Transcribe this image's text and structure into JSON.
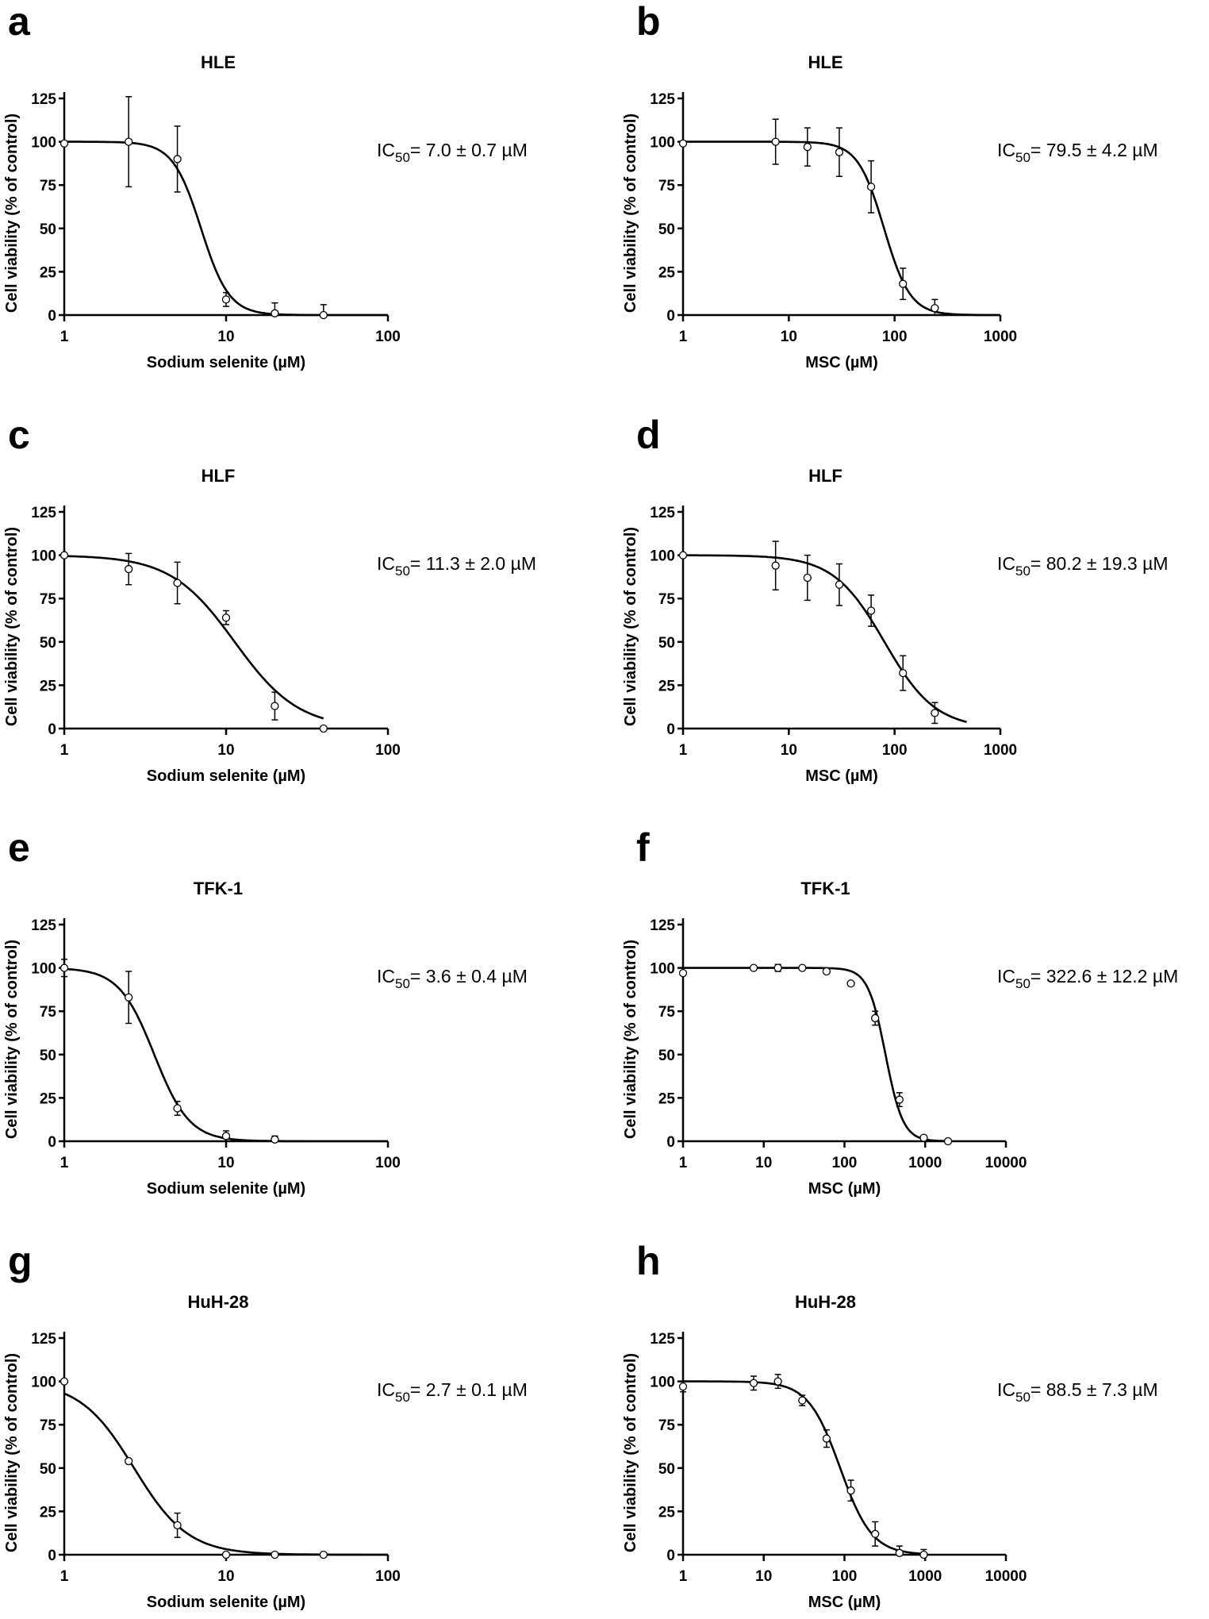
{
  "chart_data": [
    {
      "letter": "a",
      "type": "scatter",
      "title": "HLE",
      "xlabel": "Sodium selenite (µM)",
      "ylabel": "Cell viability (% of control)",
      "xscale": "log",
      "xlim": [
        1,
        100
      ],
      "xticks": [
        "1",
        "10",
        "100"
      ],
      "ylim": [
        0,
        125
      ],
      "yticks": [
        "0",
        "25",
        "50",
        "75",
        "100",
        "125"
      ],
      "ic50": {
        "prefix": "IC",
        "sub": "50",
        "value": "= 7.0 ± 0.7 µM"
      },
      "fit": {
        "top": 100,
        "bottom": 0,
        "ic50": 7.0,
        "hill": 5,
        "range": [
          1,
          100
        ]
      },
      "points": [
        {
          "x": 1,
          "y": 99,
          "err": 0
        },
        {
          "x": 2.5,
          "y": 100,
          "err": 26
        },
        {
          "x": 5,
          "y": 90,
          "err": 19
        },
        {
          "x": 10,
          "y": 9,
          "err": 4
        },
        {
          "x": 20,
          "y": 1,
          "err": 6
        },
        {
          "x": 40,
          "y": 0,
          "err": 6
        }
      ]
    },
    {
      "letter": "b",
      "type": "scatter",
      "title": "HLE",
      "xlabel": "MSC (µM)",
      "ylabel": "Cell viability (% of control)",
      "xscale": "log",
      "xlim": [
        1,
        1000
      ],
      "xticks": [
        "1",
        "10",
        "100",
        "1000"
      ],
      "ylim": [
        0,
        125
      ],
      "yticks": [
        "0",
        "25",
        "50",
        "75",
        "100",
        "125"
      ],
      "ic50": {
        "prefix": "IC",
        "sub": "50",
        "value": "= 79.5 ± 4.2 µM"
      },
      "fit": {
        "top": 100,
        "bottom": 0,
        "ic50": 79.5,
        "hill": 3.5,
        "range": [
          1,
          1000
        ]
      },
      "points": [
        {
          "x": 1,
          "y": 99,
          "err": 0
        },
        {
          "x": 7.5,
          "y": 100,
          "err": 13
        },
        {
          "x": 15,
          "y": 97,
          "err": 11
        },
        {
          "x": 30,
          "y": 94,
          "err": 14
        },
        {
          "x": 60,
          "y": 74,
          "err": 15
        },
        {
          "x": 120,
          "y": 18,
          "err": 9
        },
        {
          "x": 240,
          "y": 4,
          "err": 5
        }
      ]
    },
    {
      "letter": "c",
      "type": "scatter",
      "title": "HLF",
      "xlabel": "Sodium selenite (µM)",
      "ylabel": "Cell viability (% of control)",
      "xscale": "log",
      "xlim": [
        1,
        100
      ],
      "xticks": [
        "1",
        "10",
        "100"
      ],
      "ylim": [
        0,
        125
      ],
      "yticks": [
        "0",
        "25",
        "50",
        "75",
        "100",
        "125"
      ],
      "ic50": {
        "prefix": "IC",
        "sub": "50",
        "value": "= 11.3 ± 2.0 µM"
      },
      "fit": {
        "top": 100,
        "bottom": 0,
        "ic50": 11.3,
        "hill": 2.2,
        "range": [
          1,
          40
        ]
      },
      "points": [
        {
          "x": 1,
          "y": 100,
          "err": 0
        },
        {
          "x": 2.5,
          "y": 92,
          "err": 9
        },
        {
          "x": 5,
          "y": 84,
          "err": 12
        },
        {
          "x": 10,
          "y": 64,
          "err": 4
        },
        {
          "x": 20,
          "y": 13,
          "err": 8
        },
        {
          "x": 40,
          "y": 0,
          "err": 0
        }
      ]
    },
    {
      "letter": "d",
      "type": "scatter",
      "title": "HLF",
      "xlabel": "MSC (µM)",
      "ylabel": "Cell viability (% of control)",
      "xscale": "log",
      "xlim": [
        1,
        1000
      ],
      "xticks": [
        "1",
        "10",
        "100",
        "1000"
      ],
      "ylim": [
        0,
        125
      ],
      "yticks": [
        "0",
        "25",
        "50",
        "75",
        "100",
        "125"
      ],
      "ic50": {
        "prefix": "IC",
        "sub": "50",
        "value": "= 80.2 ± 19.3 µM"
      },
      "fit": {
        "top": 100,
        "bottom": 0,
        "ic50": 80.2,
        "hill": 1.8,
        "range": [
          1,
          480
        ]
      },
      "points": [
        {
          "x": 1,
          "y": 100,
          "err": 0
        },
        {
          "x": 7.5,
          "y": 94,
          "err": 14
        },
        {
          "x": 15,
          "y": 87,
          "err": 13
        },
        {
          "x": 30,
          "y": 83,
          "err": 12
        },
        {
          "x": 60,
          "y": 68,
          "err": 9
        },
        {
          "x": 120,
          "y": 32,
          "err": 10
        },
        {
          "x": 240,
          "y": 9,
          "err": 6
        }
      ]
    },
    {
      "letter": "e",
      "type": "scatter",
      "title": "TFK-1",
      "xlabel": "Sodium selenite (µM)",
      "ylabel": "Cell viability (% of control)",
      "xscale": "log",
      "xlim": [
        1,
        100
      ],
      "xticks": [
        "1",
        "10",
        "100"
      ],
      "ylim": [
        0,
        125
      ],
      "yticks": [
        "0",
        "25",
        "50",
        "75",
        "100",
        "125"
      ],
      "ic50": {
        "prefix": "IC",
        "sub": "50",
        "value": "= 3.6 ± 0.4 µM"
      },
      "fit": {
        "top": 100,
        "bottom": 0,
        "ic50": 3.6,
        "hill": 4,
        "range": [
          1,
          100
        ]
      },
      "points": [
        {
          "x": 1,
          "y": 100,
          "err": 5
        },
        {
          "x": 2.5,
          "y": 83,
          "err": 15
        },
        {
          "x": 5,
          "y": 19,
          "err": 4
        },
        {
          "x": 10,
          "y": 3,
          "err": 3
        },
        {
          "x": 20,
          "y": 1,
          "err": 2
        }
      ]
    },
    {
      "letter": "f",
      "type": "scatter",
      "title": "TFK-1",
      "xlabel": "MSC (µM)",
      "ylabel": "Cell viability (% of control)",
      "xscale": "log",
      "xlim": [
        1,
        10000
      ],
      "xticks": [
        "1",
        "10",
        "100",
        "1000",
        "10000"
      ],
      "ylim": [
        0,
        125
      ],
      "yticks": [
        "0",
        "25",
        "50",
        "75",
        "100",
        "125"
      ],
      "ic50": {
        "prefix": "IC",
        "sub": "50",
        "value": "= 322.6 ± 12.2 µM"
      },
      "fit": {
        "top": 100,
        "bottom": 0,
        "ic50": 322.6,
        "hill": 4,
        "range": [
          1,
          2000
        ]
      },
      "points": [
        {
          "x": 1,
          "y": 97,
          "err": 0
        },
        {
          "x": 7.5,
          "y": 100,
          "err": 0
        },
        {
          "x": 15,
          "y": 100,
          "err": 2
        },
        {
          "x": 30,
          "y": 100,
          "err": 0
        },
        {
          "x": 60,
          "y": 98,
          "err": 0
        },
        {
          "x": 120,
          "y": 91,
          "err": 0
        },
        {
          "x": 240,
          "y": 71,
          "err": 4
        },
        {
          "x": 480,
          "y": 24,
          "err": 4
        },
        {
          "x": 960,
          "y": 2,
          "err": 0
        },
        {
          "x": 1920,
          "y": 0,
          "err": 0
        }
      ]
    },
    {
      "letter": "g",
      "type": "scatter",
      "title": "HuH-28",
      "xlabel": "Sodium selenite (µM)",
      "ylabel": "Cell viability (% of control)",
      "xscale": "log",
      "xlim": [
        1,
        100
      ],
      "xticks": [
        "1",
        "10",
        "100"
      ],
      "ylim": [
        0,
        125
      ],
      "yticks": [
        "0",
        "25",
        "50",
        "75",
        "100",
        "125"
      ],
      "ic50": {
        "prefix": "IC",
        "sub": "50",
        "value": "= 2.7 ± 0.1 µM"
      },
      "fit": {
        "top": 100,
        "bottom": 0,
        "ic50": 2.7,
        "hill": 2.6,
        "range": [
          1,
          100
        ]
      },
      "points": [
        {
          "x": 1,
          "y": 100,
          "err": 0
        },
        {
          "x": 2.5,
          "y": 54,
          "err": 0
        },
        {
          "x": 5,
          "y": 17,
          "err": 7
        },
        {
          "x": 10,
          "y": 0,
          "err": 0
        },
        {
          "x": 20,
          "y": 0,
          "err": 0
        },
        {
          "x": 40,
          "y": 0,
          "err": 0
        }
      ]
    },
    {
      "letter": "h",
      "type": "scatter",
      "title": "HuH-28",
      "xlabel": "MSC (µM)",
      "ylabel": "Cell viability (% of control)",
      "xscale": "log",
      "xlim": [
        1,
        10000
      ],
      "xticks": [
        "1",
        "10",
        "100",
        "1000",
        "10000"
      ],
      "ylim": [
        0,
        125
      ],
      "yticks": [
        "0",
        "25",
        "50",
        "75",
        "100",
        "125"
      ],
      "ic50": {
        "prefix": "IC",
        "sub": "50",
        "value": "= 88.5 ± 7.3 µM"
      },
      "fit": {
        "top": 100,
        "bottom": 0,
        "ic50": 88.5,
        "hill": 2.2,
        "range": [
          1,
          1000
        ]
      },
      "points": [
        {
          "x": 1,
          "y": 97,
          "err": 3
        },
        {
          "x": 7.5,
          "y": 99,
          "err": 4
        },
        {
          "x": 15,
          "y": 100,
          "err": 4
        },
        {
          "x": 30,
          "y": 89,
          "err": 3
        },
        {
          "x": 60,
          "y": 67,
          "err": 5
        },
        {
          "x": 120,
          "y": 37,
          "err": 6
        },
        {
          "x": 240,
          "y": 12,
          "err": 7
        },
        {
          "x": 480,
          "y": 1,
          "err": 4
        },
        {
          "x": 960,
          "y": 0,
          "err": 3
        }
      ]
    }
  ]
}
